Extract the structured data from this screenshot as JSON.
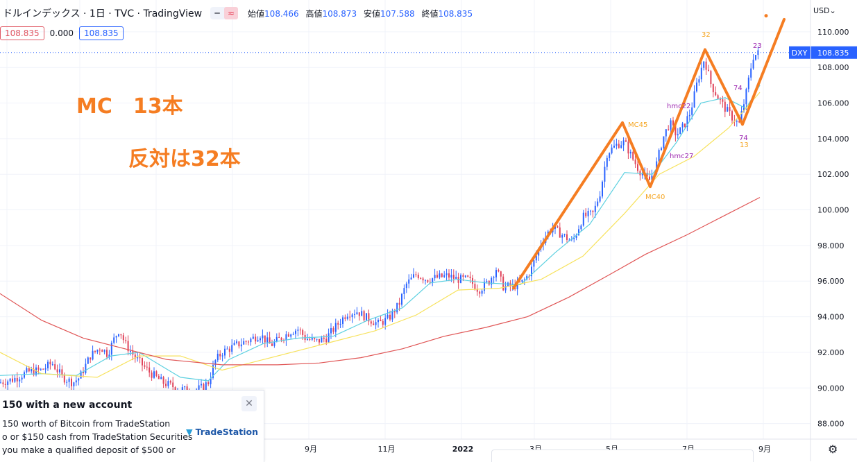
{
  "header": {
    "title": "ドルインデックス · 1日 · TVC · TradingView",
    "toggle": [
      "━",
      "≈"
    ],
    "ohlc": [
      {
        "label": "始値",
        "value": "108.466"
      },
      {
        "label": "高値",
        "value": "108.873"
      },
      {
        "label": "安値",
        "value": "107.588"
      },
      {
        "label": "終値",
        "value": "108.835"
      }
    ]
  },
  "price_boxes": {
    "bid": "108.835",
    "spread": "0.000",
    "ask": "108.835"
  },
  "axis": {
    "currency": "USD"
  },
  "chart_data": {
    "type": "candlestick",
    "symbol": "DXY",
    "last_price": "108.835",
    "ylim": [
      87.0,
      111.3
    ],
    "y_ticks": [
      "110.000",
      "108.000",
      "106.000",
      "104.000",
      "102.000",
      "100.000",
      "98.000",
      "96.000",
      "94.000",
      "92.000",
      "90.000",
      "88.000"
    ],
    "x_ticks": [
      "9月",
      "11月",
      "2022",
      "3月",
      "5月",
      "7月",
      "9月"
    ],
    "approx_close_path": [
      [
        0,
        90.3
      ],
      [
        20,
        90.5
      ],
      [
        40,
        90.9
      ],
      [
        60,
        91.0
      ],
      [
        75,
        91.4
      ],
      [
        90,
        90.6
      ],
      [
        105,
        90.3
      ],
      [
        115,
        90.6
      ],
      [
        130,
        91.8
      ],
      [
        145,
        92.3
      ],
      [
        155,
        91.9
      ],
      [
        165,
        92.8
      ],
      [
        172,
        93.3
      ],
      [
        180,
        92.5
      ],
      [
        195,
        91.7
      ],
      [
        215,
        90.9
      ],
      [
        235,
        90.3
      ],
      [
        255,
        90.0
      ],
      [
        275,
        89.8
      ],
      [
        290,
        90.0
      ],
      [
        300,
        90.3
      ],
      [
        310,
        91.5
      ],
      [
        320,
        92.0
      ],
      [
        340,
        92.4
      ],
      [
        360,
        92.7
      ],
      [
        375,
        93.0
      ],
      [
        390,
        92.4
      ],
      [
        405,
        92.8
      ],
      [
        420,
        93.2
      ],
      [
        430,
        93.3
      ],
      [
        440,
        92.8
      ],
      [
        455,
        92.6
      ],
      [
        470,
        92.8
      ],
      [
        485,
        93.5
      ],
      [
        500,
        94.2
      ],
      [
        515,
        94.3
      ],
      [
        530,
        93.9
      ],
      [
        545,
        93.6
      ],
      [
        560,
        93.9
      ],
      [
        575,
        94.7
      ],
      [
        585,
        95.8
      ],
      [
        600,
        96.4
      ],
      [
        615,
        96.1
      ],
      [
        630,
        96.2
      ],
      [
        645,
        96.3
      ],
      [
        660,
        96.1
      ],
      [
        675,
        96.1
      ],
      [
        690,
        95.5
      ],
      [
        705,
        96.0
      ],
      [
        715,
        96.7
      ],
      [
        725,
        95.7
      ],
      [
        740,
        95.7
      ],
      [
        755,
        96.0
      ],
      [
        765,
        96.6
      ],
      [
        780,
        98.2
      ],
      [
        795,
        99.0
      ],
      [
        810,
        98.6
      ],
      [
        825,
        98.2
      ],
      [
        840,
        99.6
      ],
      [
        855,
        99.8
      ],
      [
        865,
        101.0
      ],
      [
        875,
        103.2
      ],
      [
        890,
        103.7
      ],
      [
        900,
        103.8
      ],
      [
        910,
        103.0
      ],
      [
        920,
        102.3
      ],
      [
        935,
        101.6
      ],
      [
        945,
        102.4
      ],
      [
        955,
        104.0
      ],
      [
        965,
        104.9
      ],
      [
        975,
        104.2
      ],
      [
        985,
        104.7
      ],
      [
        995,
        105.5
      ],
      [
        1005,
        107.2
      ],
      [
        1015,
        108.5
      ],
      [
        1025,
        107.0
      ],
      [
        1035,
        106.3
      ],
      [
        1045,
        105.7
      ],
      [
        1055,
        105.2
      ],
      [
        1065,
        104.8
      ],
      [
        1075,
        106.5
      ],
      [
        1085,
        108.6
      ],
      [
        1092,
        108.8
      ]
    ],
    "series": [
      {
        "color": "#5cd0e0",
        "path": [
          [
            0,
            90.7
          ],
          [
            60,
            90.8
          ],
          [
            110,
            90.7
          ],
          [
            160,
            91.8
          ],
          [
            200,
            92.0
          ],
          [
            260,
            90.6
          ],
          [
            300,
            90.4
          ],
          [
            330,
            91.6
          ],
          [
            380,
            92.5
          ],
          [
            430,
            92.8
          ],
          [
            480,
            92.9
          ],
          [
            530,
            93.8
          ],
          [
            580,
            94.5
          ],
          [
            620,
            95.9
          ],
          [
            660,
            96.1
          ],
          [
            700,
            95.9
          ],
          [
            750,
            95.8
          ],
          [
            800,
            97.6
          ],
          [
            850,
            99.2
          ],
          [
            900,
            102.1
          ],
          [
            940,
            102.0
          ],
          [
            975,
            103.8
          ],
          [
            1010,
            106.0
          ],
          [
            1045,
            106.3
          ],
          [
            1075,
            105.7
          ],
          [
            1095,
            107.0
          ]
        ]
      },
      {
        "color": "#f7e25c",
        "path": [
          [
            0,
            92.0
          ],
          [
            60,
            90.8
          ],
          [
            140,
            90.6
          ],
          [
            200,
            91.8
          ],
          [
            260,
            91.8
          ],
          [
            320,
            91.0
          ],
          [
            380,
            91.6
          ],
          [
            430,
            92.1
          ],
          [
            480,
            92.6
          ],
          [
            540,
            93.2
          ],
          [
            600,
            94.1
          ],
          [
            660,
            95.5
          ],
          [
            720,
            95.6
          ],
          [
            780,
            96.1
          ],
          [
            840,
            97.4
          ],
          [
            900,
            99.8
          ],
          [
            950,
            102.0
          ],
          [
            1000,
            103.0
          ],
          [
            1050,
            104.6
          ],
          [
            1095,
            106.6
          ]
        ]
      },
      {
        "color": "#e05555",
        "path": [
          [
            0,
            95.3
          ],
          [
            60,
            93.8
          ],
          [
            120,
            92.8
          ],
          [
            180,
            92.2
          ],
          [
            240,
            91.6
          ],
          [
            320,
            91.3
          ],
          [
            400,
            91.3
          ],
          [
            460,
            91.4
          ],
          [
            520,
            91.7
          ],
          [
            580,
            92.2
          ],
          [
            640,
            92.9
          ],
          [
            700,
            93.4
          ],
          [
            760,
            94.0
          ],
          [
            820,
            95.1
          ],
          [
            880,
            96.4
          ],
          [
            930,
            97.5
          ],
          [
            990,
            98.6
          ],
          [
            1040,
            99.6
          ],
          [
            1095,
            100.7
          ]
        ]
      }
    ],
    "annotation_text": {
      "main": "MC　13本",
      "sub": "反対は32本",
      "mc45": "MC45",
      "mc40": "MC40",
      "hmc22": "hmc22",
      "hmc27": "hmc27",
      "n74a": "74",
      "n74b": "74",
      "n13": "13",
      "n32": "32",
      "n23": "23"
    },
    "zigzag": [
      [
        740,
        95.6
      ],
      [
        897,
        104.9
      ],
      [
        937,
        101.3
      ],
      [
        1016,
        109.0
      ],
      [
        1070,
        104.8
      ],
      [
        1130,
        110.7
      ]
    ]
  },
  "ad": {
    "headline": "150 with a new account",
    "line1": "150 worth of Bitcoin from TradeStation",
    "line2": "o or $150 cash from TradeStation Securities",
    "line3": "you make a qualified deposit of $500 or",
    "close": "✕",
    "logo_text": "TradeStation",
    "logo_mark": "▼"
  },
  "icons": {
    "gear": "⚙",
    "dropdown": "⌄"
  }
}
